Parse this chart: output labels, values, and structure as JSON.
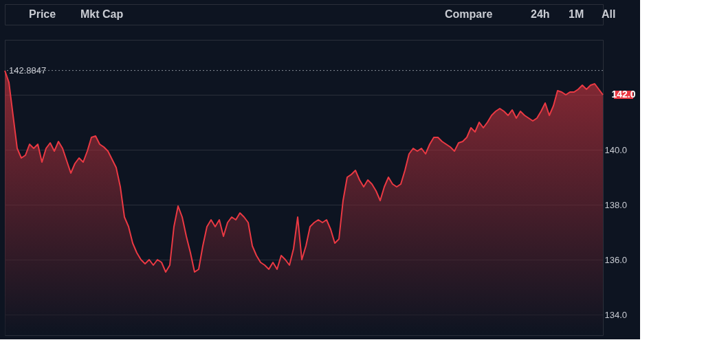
{
  "chart_data": {
    "type": "area",
    "categories": [
      null,
      null,
      null,
      null,
      null,
      null,
      null,
      null,
      null,
      null,
      null,
      null,
      null,
      null,
      null,
      null,
      null,
      null,
      null,
      null,
      null,
      null,
      null,
      null,
      null,
      null,
      null,
      null,
      null,
      null,
      null,
      null,
      null,
      null,
      null,
      null,
      null,
      null,
      null,
      null,
      null,
      null,
      null,
      null,
      null,
      null,
      null,
      null,
      null,
      null,
      null,
      null,
      null,
      null,
      null,
      null,
      null,
      null,
      null,
      null,
      null,
      null,
      null,
      null,
      null,
      null,
      null,
      null,
      null,
      null,
      null,
      null,
      null,
      null,
      null,
      null,
      null,
      null,
      null,
      null,
      null,
      null,
      null,
      null,
      null,
      null,
      null,
      null,
      null,
      null,
      null,
      null,
      null,
      null,
      null,
      null,
      null,
      null,
      null,
      null,
      null,
      null,
      null,
      null,
      null,
      null,
      null,
      null,
      null,
      null,
      null,
      null,
      null,
      null,
      null,
      null,
      null,
      null,
      null,
      null,
      null,
      null,
      null,
      null,
      null,
      null,
      null,
      null,
      null,
      null,
      null,
      null,
      null,
      null,
      null,
      null,
      null,
      null,
      null,
      null,
      null,
      null,
      null,
      null,
      null,
      null
    ],
    "series": [
      {
        "color": "#ea3943",
        "values": [
          142.88,
          142.45,
          141.25,
          140.05,
          139.7,
          139.8,
          140.2,
          140.05,
          140.2,
          139.55,
          140.05,
          140.25,
          139.95,
          140.3,
          140.05,
          139.6,
          139.15,
          139.5,
          139.7,
          139.55,
          139.95,
          140.45,
          140.5,
          140.2,
          140.1,
          139.95,
          139.65,
          139.35,
          138.65,
          137.55,
          137.2,
          136.6,
          136.25,
          136.0,
          135.85,
          136.0,
          135.8,
          136.0,
          135.9,
          135.55,
          135.8,
          137.2,
          137.95,
          137.55,
          136.85,
          136.25,
          135.55,
          135.65,
          136.5,
          137.2,
          137.45,
          137.2,
          137.45,
          136.85,
          137.35,
          137.55,
          137.45,
          137.7,
          137.55,
          137.35,
          136.5,
          136.15,
          135.9,
          135.8,
          135.65,
          135.9,
          135.65,
          136.15,
          136.0,
          135.8,
          136.4,
          137.55,
          136.0,
          136.5,
          137.2,
          137.35,
          137.45,
          137.35,
          137.45,
          137.1,
          136.6,
          136.75,
          138.15,
          139.0,
          139.1,
          139.25,
          138.9,
          138.65,
          138.9,
          138.75,
          138.5,
          138.15,
          138.65,
          139.0,
          138.75,
          138.65,
          138.75,
          139.25,
          139.85,
          140.05,
          139.95,
          140.05,
          139.85,
          140.2,
          140.45,
          140.45,
          140.3,
          140.2,
          140.1,
          139.95,
          140.25,
          140.3,
          140.45,
          140.8,
          140.65,
          141.0,
          140.8,
          141.0,
          141.25,
          141.4,
          141.5,
          141.4,
          141.25,
          141.45,
          141.15,
          141.4,
          141.25,
          141.15,
          141.05,
          141.15,
          141.4,
          141.7,
          141.25,
          141.6,
          142.15,
          142.1,
          142.0,
          142.1,
          142.1,
          142.2,
          142.35,
          142.2,
          142.35,
          142.4,
          142.2,
          142.0
        ]
      }
    ],
    "ylim": [
      133.25,
      144
    ],
    "yticks": [
      {
        "value": 134,
        "label": "134.0"
      },
      {
        "value": 136,
        "label": "136.0"
      },
      {
        "value": 138,
        "label": "138.0"
      },
      {
        "value": 140,
        "label": "140.0"
      },
      {
        "value": 142,
        "label": null
      }
    ],
    "grid": "y",
    "tick_labels": "y",
    "ref_lines": [
      {
        "axis": "y",
        "value": 142.8847,
        "label": "142.8847",
        "color": "#8a8f99",
        "line_style": "dotted"
      }
    ],
    "annotations": [
      "Price",
      "Mkt Cap",
      "Compare",
      "24h",
      "1M",
      "All",
      "142.0"
    ]
  }
}
